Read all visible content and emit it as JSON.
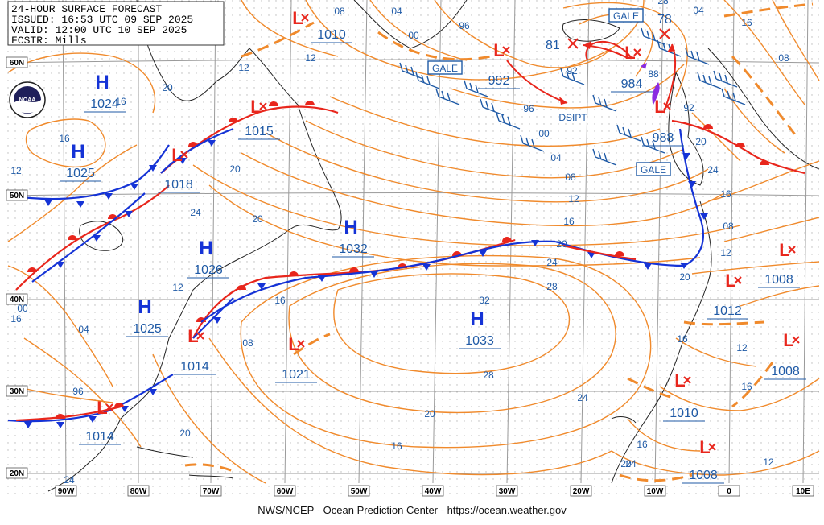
{
  "header": {
    "title": "24-HOUR SURFACE FORECAST",
    "issued": "ISSUED: 16:53 UTC 09 SEP 2025",
    "valid": "VALID:  12:00 UTC 10 SEP 2025",
    "forecaster": "FCSTR:  Mills"
  },
  "logo": {
    "text": "NOAA"
  },
  "footer": {
    "credit": "NWS/NCEP - Ocean Prediction Center - https://ocean.weather.gov"
  },
  "lon_labels": [
    "90W",
    "80W",
    "70W",
    "60W",
    "50W",
    "40W",
    "30W",
    "20W",
    "10W",
    "0",
    "10E"
  ],
  "lat_labels": [
    "60N",
    "50N",
    "40N",
    "30N",
    "20N"
  ],
  "highs": [
    {
      "letter": "H",
      "pressure": "1024"
    },
    {
      "letter": "H",
      "pressure": "1025"
    },
    {
      "letter": "H",
      "pressure": "1026"
    },
    {
      "letter": "H",
      "pressure": "1025"
    },
    {
      "letter": "H",
      "pressure": "1032"
    },
    {
      "letter": "H",
      "pressure": "1033"
    }
  ],
  "lows": [
    {
      "letter": "L",
      "pressure": "1010"
    },
    {
      "letter": "L",
      "pressure": "1015"
    },
    {
      "letter": "L",
      "pressure": "1018"
    },
    {
      "letter": "L",
      "pressure": "992"
    },
    {
      "letter": "L",
      "pressure": "984"
    },
    {
      "letter": "L",
      "pressure": "988"
    },
    {
      "letter": "L",
      "pressure": "1014"
    },
    {
      "letter": "L",
      "pressure": "1021"
    },
    {
      "letter": "L",
      "pressure": "1014"
    },
    {
      "letter": "L",
      "pressure": "1008"
    },
    {
      "letter": "L",
      "pressure": "1012"
    },
    {
      "letter": "L",
      "pressure": "1008"
    },
    {
      "letter": "L",
      "pressure": "1010"
    },
    {
      "letter": "L",
      "pressure": "1008"
    }
  ],
  "cross_markers": [
    {
      "label": "81"
    },
    {
      "label": "78"
    }
  ],
  "warnings": [
    "GALE",
    "GALE",
    "GALE"
  ],
  "dissipating_label": "DSIPT",
  "isobar_labels": [
    "08",
    "04",
    "00",
    "96",
    "12",
    "92",
    "88",
    "92",
    "96",
    "00",
    "04",
    "08",
    "12",
    "16",
    "20",
    "24",
    "28",
    "32",
    "28",
    "24",
    "20",
    "16",
    "12",
    "16",
    "20",
    "24",
    "20",
    "16",
    "12",
    "08",
    "04",
    "00",
    "96",
    "20",
    "24",
    "16",
    "20",
    "16",
    "12",
    "16",
    "12",
    "08",
    "12",
    "20",
    "24",
    "16",
    "20",
    "12",
    "16",
    "08",
    "04",
    "28",
    "24",
    "20",
    "16",
    "12",
    "16"
  ],
  "colors": {
    "isobar": "#f08a2c",
    "cold_front": "#1533d6",
    "warm_front": "#e8261c",
    "low_symbol": "#e8261c",
    "high_symbol": "#1533d6",
    "label_text": "#1f5aa6",
    "coast": "#222222",
    "grid": "#9a9a9a",
    "occluded": "#8a2be2"
  }
}
